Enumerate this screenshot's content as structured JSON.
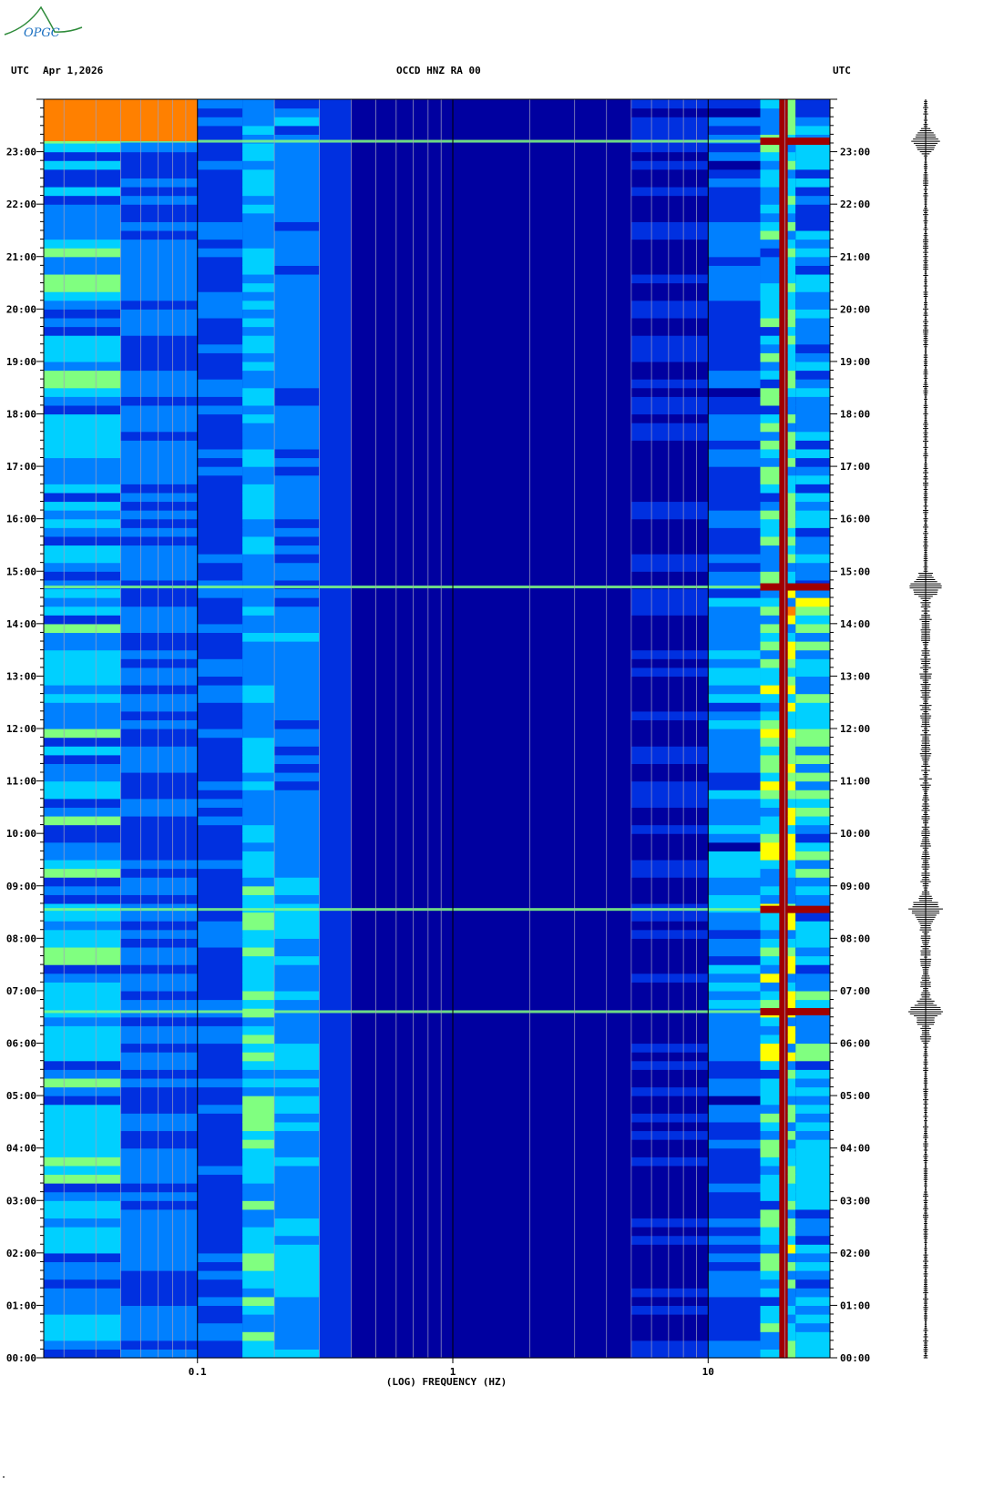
{
  "header": {
    "left_utc": "UTC",
    "date": "Apr 1,2026",
    "station": "OCCD HNZ RA 00",
    "right_utc": "UTC"
  },
  "logo": {
    "text": "OPGC",
    "color": "#2e8b3a"
  },
  "footer_mark": "\"",
  "chart_data": {
    "type": "heatmap",
    "title": "OCCD HNZ RA 00",
    "xlabel": "(LOG) FREQUENCY (HZ)",
    "x_scale": "log",
    "xlim": [
      0.025,
      30
    ],
    "x_ticks": [
      0.1,
      1,
      10
    ],
    "x_tick_labels": [
      "0.1",
      "1",
      "10"
    ],
    "y_unit": "hours UTC",
    "ylim": [
      0,
      24
    ],
    "y_tick_labels": [
      "00:00",
      "01:00",
      "02:00",
      "03:00",
      "04:00",
      "05:00",
      "06:00",
      "07:00",
      "08:00",
      "09:00",
      "10:00",
      "11:00",
      "12:00",
      "13:00",
      "14:00",
      "15:00",
      "16:00",
      "17:00",
      "18:00",
      "19:00",
      "20:00",
      "21:00",
      "22:00",
      "23:00"
    ],
    "colorscale": [
      "#0000a0",
      "#0030e0",
      "#0080ff",
      "#00d0ff",
      "#80ff80",
      "#ffff00",
      "#ff8000",
      "#a00000"
    ],
    "grid": true,
    "events_utc_hours": [
      6.6,
      8.55,
      14.7,
      23.2
    ],
    "seismogram_trace": true
  }
}
